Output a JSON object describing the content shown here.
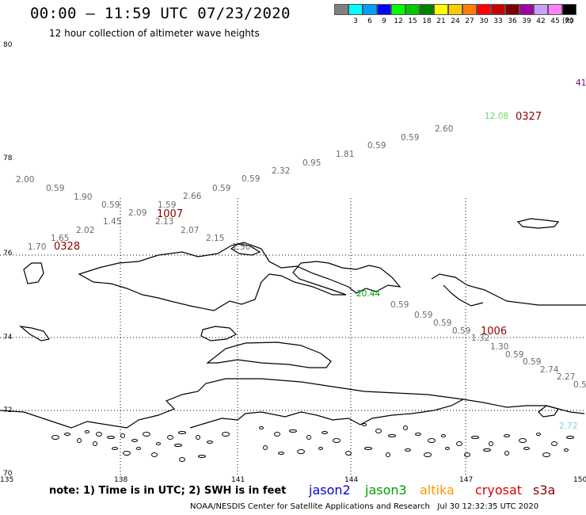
{
  "header": {
    "title": "00:00 – 11:59 UTC 07/23/2020",
    "subtitle": "12 hour collection of altimeter wave heights"
  },
  "scale": {
    "colors": [
      "#808080",
      "#00ffff",
      "#00a0ff",
      "#0000ff",
      "#00ff00",
      "#00c800",
      "#008000",
      "#ffff00",
      "#ffc800",
      "#ff8000",
      "#ff0000",
      "#c80000",
      "#800000",
      "#a000a0",
      "#c8a0ff",
      "#ff80ff",
      "#000000"
    ],
    "labels": [
      "",
      "3",
      "6",
      "9",
      "12",
      "15",
      "18",
      "21",
      "24",
      "27",
      "30",
      "33",
      "36",
      "39",
      "42",
      "45",
      "70"
    ],
    "unit": "(ft)"
  },
  "axes": {
    "lat_labels": [
      "80",
      "78",
      "76",
      "74",
      "72",
      "70"
    ],
    "lon_labels": [
      "135",
      "138",
      "141",
      "144",
      "147",
      "150"
    ]
  },
  "observations": [
    {
      "text": "2.00",
      "color": "#6b6b6b"
    },
    {
      "text": "0.59",
      "color": "#6b6b6b"
    },
    {
      "text": "1.90",
      "color": "#6b6b6b"
    },
    {
      "text": "0.59",
      "color": "#6b6b6b"
    },
    {
      "text": "2.09",
      "color": "#6b6b6b"
    },
    {
      "text": "1.59",
      "color": "#6b6b6b"
    },
    {
      "text": "1.45",
      "color": "#6b6b6b"
    },
    {
      "text": "2.13",
      "color": "#6b6b6b"
    },
    {
      "text": "2.66",
      "color": "#6b6b6b"
    },
    {
      "text": "0.59",
      "color": "#6b6b6b"
    },
    {
      "text": "0.59",
      "color": "#6b6b6b"
    },
    {
      "text": "2.32",
      "color": "#6b6b6b"
    },
    {
      "text": "0.95",
      "color": "#6b6b6b"
    },
    {
      "text": "1.81",
      "color": "#6b6b6b"
    },
    {
      "text": "0.59",
      "color": "#6b6b6b"
    },
    {
      "text": "0.59",
      "color": "#6b6b6b"
    },
    {
      "text": "2.60",
      "color": "#6b6b6b"
    },
    {
      "text": "12.08",
      "color": "#66dd66"
    },
    {
      "text": "41",
      "color": "#800080"
    },
    {
      "text": "2.02",
      "color": "#6b6b6b"
    },
    {
      "text": "1.65",
      "color": "#6b6b6b"
    },
    {
      "text": "1.70",
      "color": "#6b6b6b"
    },
    {
      "text": "2.07",
      "color": "#6b6b6b"
    },
    {
      "text": "2.15",
      "color": "#6b6b6b"
    },
    {
      "text": "1.50",
      "color": "#6b6b6b"
    },
    {
      "text": "20.44",
      "color": "#00a000"
    },
    {
      "text": "0.59",
      "color": "#6b6b6b"
    },
    {
      "text": "0.59",
      "color": "#6b6b6b"
    },
    {
      "text": "0.59",
      "color": "#6b6b6b"
    },
    {
      "text": "0.59",
      "color": "#6b6b6b"
    },
    {
      "text": "1.32",
      "color": "#6b6b6b"
    },
    {
      "text": "1.30",
      "color": "#6b6b6b"
    },
    {
      "text": "0.59",
      "color": "#6b6b6b"
    },
    {
      "text": "0.59",
      "color": "#6b6b6b"
    },
    {
      "text": "2.74",
      "color": "#6b6b6b"
    },
    {
      "text": "2.27",
      "color": "#6b6b6b"
    },
    {
      "text": "0.5",
      "color": "#6b6b6b"
    },
    {
      "text": "2.72",
      "color": "#87ceeb"
    }
  ],
  "pass_times": [
    "0327",
    "1007",
    "0328",
    "1006"
  ],
  "footer": {
    "note": "note: 1) Time is in UTC; 2) SWH is in feet",
    "satellites": [
      {
        "name": "jason2",
        "color": "#0000dd"
      },
      {
        "name": "jason3",
        "color": "#00a000"
      },
      {
        "name": "altika",
        "color": "#ff9900"
      },
      {
        "name": "cryosat",
        "color": "#dd0000"
      },
      {
        "name": "s3a",
        "color": "#8b0000"
      }
    ],
    "credit": "NOAA/NESDIS Center for Satellite Applications and Research",
    "timestamp": "Jul 30 12:32:35 UTC 2020"
  }
}
